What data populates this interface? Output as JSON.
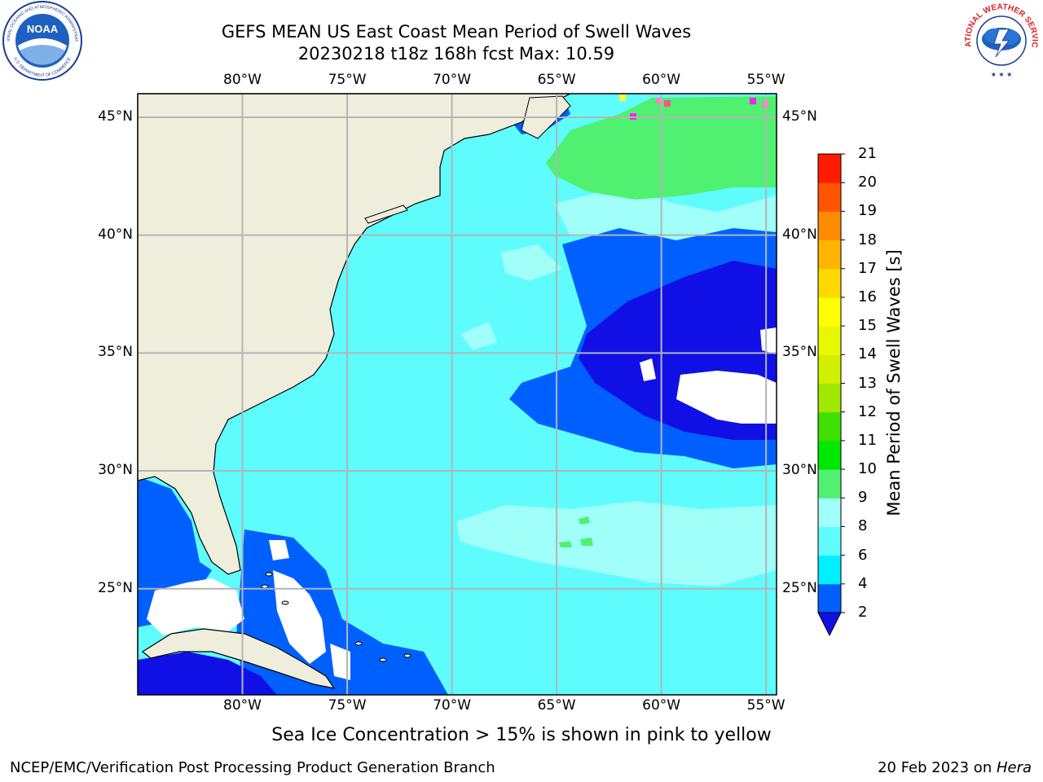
{
  "title_line1": "GEFS MEAN US East Coast Mean Period of Swell Waves",
  "title_line2": "20230218 t18z 168h fcst   Max: 10.59",
  "map": {
    "lon_labels": [
      "80°W",
      "75°W",
      "70°W",
      "65°W",
      "60°W",
      "55°W"
    ],
    "lat_labels": [
      "45°N",
      "40°N",
      "35°N",
      "30°N",
      "25°N"
    ],
    "lon_values": [
      -80,
      -75,
      -70,
      -65,
      -60,
      -55
    ],
    "lat_values": [
      45,
      40,
      35,
      30,
      25
    ],
    "lon_range": [
      -85,
      -54.5
    ],
    "lat_range": [
      20.5,
      46
    ],
    "land_color": "#efeedd",
    "ocean_base_color": "#5ffcfd",
    "grid_color": "#b4b4b4"
  },
  "colorbar": {
    "title": "Mean Period of Swell Waves [s]",
    "ticks": [
      "2",
      "4",
      "6",
      "8",
      "9",
      "10",
      "11",
      "12",
      "13",
      "14",
      "15",
      "16",
      "17",
      "18",
      "19",
      "20",
      "21"
    ],
    "colors": [
      "#0060ff",
      "#00f0ff",
      "#60fcff",
      "#a0fff8",
      "#50f070",
      "#00e800",
      "#40e000",
      "#a0e800",
      "#d0f000",
      "#e8f800",
      "#ffff00",
      "#ffd800",
      "#ffb400",
      "#ff8c00",
      "#ff5400",
      "#ff1c00"
    ],
    "under_color": "#1010e6"
  },
  "footer": {
    "sea_ice_note": "Sea Ice Concentration > 15% is shown in pink to yellow",
    "credit": "NCEP/EMC/Verification Post Processing Product Generation Branch",
    "date": "20 Feb 2023 on ",
    "host": "Hera"
  },
  "logos": {
    "noaa_text": "NOAA",
    "noaa_ring_text": "NATIONAL OCEANIC AND ATMOSPHERIC ADMINISTRATION",
    "noaa_ring_text_bottom": "U.S. DEPARTMENT OF COMMERCE",
    "nws_ring_text": "NATIONAL WEATHER SERVICE"
  }
}
